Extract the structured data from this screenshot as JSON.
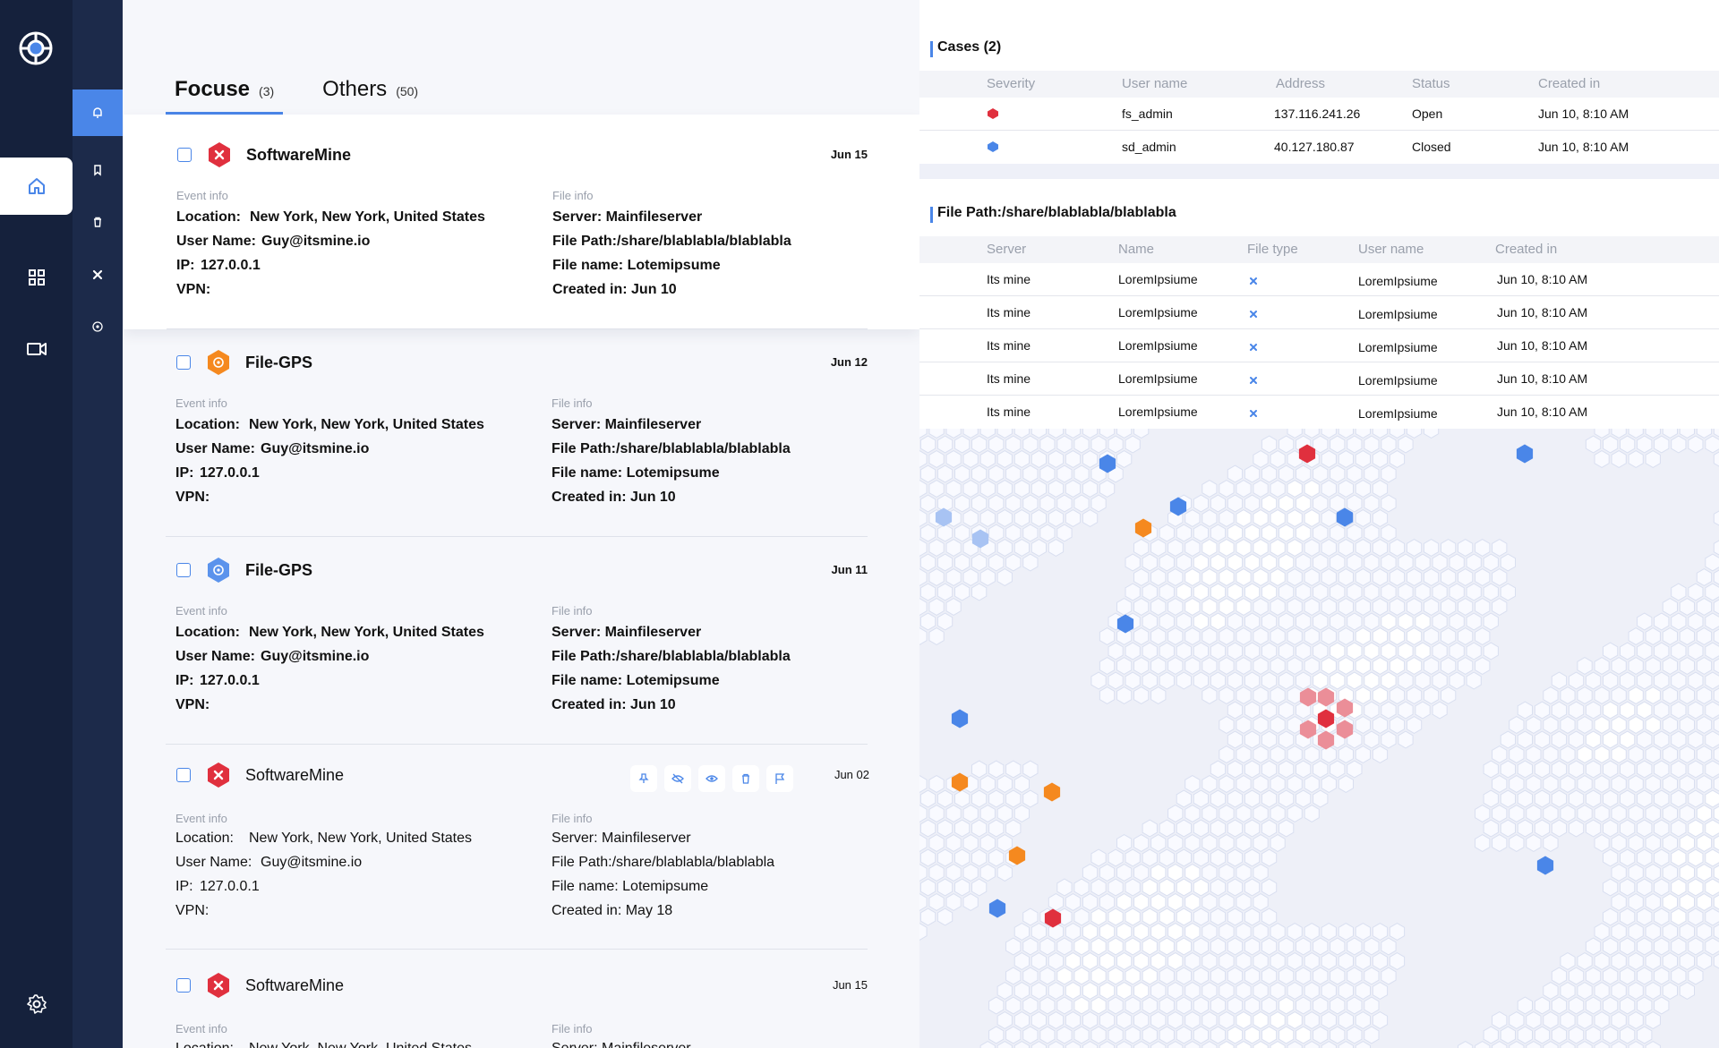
{
  "colors": {
    "accent": "#4a86e8",
    "danger": "#e0303e",
    "warning": "#f5891f",
    "rail_dark": "#15213c",
    "rail_mid": "#1c2a4a"
  },
  "nav": {
    "rail_icons": [
      "logo-icon",
      "home-icon",
      "grid-icon",
      "video-camera-icon",
      "gear-icon"
    ],
    "sub_icons": [
      "bell-icon",
      "bookmark-icon",
      "trash-icon",
      "x-badge-icon",
      "target-icon"
    ]
  },
  "tabs": [
    {
      "label": "Focuse",
      "count": "(3)"
    },
    {
      "label": "Others",
      "count": "(50)"
    }
  ],
  "events": [
    {
      "title": "SoftwareMine",
      "date": "Jun 15",
      "severity": "danger",
      "icon": "x-badge-icon",
      "event_info_label": "Event info",
      "file_info_label": "File info",
      "location_label": "Location:",
      "location": "New York, New York, United States",
      "user_label": "User Name:",
      "user": "Guy@itsmine.io",
      "ip_label": "IP:",
      "ip": "127.0.0.1",
      "vpn_label": "VPN:",
      "server": "Server: Mainfileserver",
      "file_path": "File Path:/share/blablabla/blablabla",
      "file_name": "File name: Lotemipsume",
      "created": "Created in: Jun 10"
    },
    {
      "title": "File-GPS",
      "date": "Jun 12",
      "severity": "warning",
      "icon": "target-icon",
      "event_info_label": "Event info",
      "file_info_label": "File info",
      "location_label": "Location:",
      "location": "New York, New York, United States",
      "user_label": "User Name:",
      "user": "Guy@itsmine.io",
      "ip_label": "IP:",
      "ip": "127.0.0.1",
      "vpn_label": "VPN:",
      "server": "Server: Mainfileserver",
      "file_path": "File Path:/share/blablabla/blablabla",
      "file_name": "File name: Lotemipsume",
      "created": "Created in: Jun 10"
    },
    {
      "title": "File-GPS",
      "date": "Jun 11",
      "severity": "info",
      "icon": "target-icon",
      "event_info_label": "Event info",
      "file_info_label": "File info",
      "location_label": "Location:",
      "location": "New York, New York, United States",
      "user_label": "User Name:",
      "user": "Guy@itsmine.io",
      "ip_label": "IP:",
      "ip": "127.0.0.1",
      "vpn_label": "VPN:",
      "server": "Server: Mainfileserver",
      "file_path": "File Path:/share/blablabla/blablabla",
      "file_name": "File name: Lotemipsume",
      "created": "Created in: Jun 10"
    },
    {
      "title": "SoftwareMine",
      "date": "Jun 02",
      "severity": "danger",
      "icon": "x-badge-icon",
      "event_info_label": "Event info",
      "file_info_label": "File info",
      "location_label": "Location:",
      "location": "New York, New York, United States",
      "user_label": "User Name:",
      "user": "Guy@itsmine.io",
      "ip_label": "IP:",
      "ip": "127.0.0.1",
      "vpn_label": "VPN:",
      "server": "Server: Mainfileserver",
      "file_path": "File Path:/share/blablabla/blablabla",
      "file_name": "File name: Lotemipsume",
      "created": "Created in: May 18",
      "actions": [
        "pin-icon",
        "eye-off-icon",
        "eye-icon",
        "trash-icon",
        "flag-icon"
      ]
    },
    {
      "title": "SoftwareMine",
      "date": "Jun 15",
      "severity": "danger",
      "icon": "x-badge-icon",
      "event_info_label": "Event info",
      "file_info_label": "File info",
      "location_label": "Location:",
      "location": "New York, New York, United States",
      "server": "Server: Mainfileserver"
    }
  ],
  "cases": {
    "title": "Cases (2)",
    "columns": [
      "Severity",
      "User name",
      "Address",
      "Status",
      "Created in"
    ],
    "rows": [
      {
        "severity": "danger",
        "user": "fs_admin",
        "address": "137.116.241.26",
        "status": "Open",
        "created": "Jun 10, 8:10 AM"
      },
      {
        "severity": "info",
        "user": "sd_admin",
        "address": "40.127.180.87",
        "status": "Closed",
        "created": "Jun 10, 8:10 AM"
      }
    ]
  },
  "files": {
    "title": "File Path:/share/blablabla/blablabla",
    "columns": [
      "Server",
      "Name",
      "File type",
      "User name",
      "Created in"
    ],
    "rows": [
      {
        "server": "Its mine",
        "name": "LoremIpsiume",
        "type_icon": "x-badge-icon",
        "user": "LoremIpsiume",
        "created": "Jun 10, 8:10 AM"
      },
      {
        "server": "Its mine",
        "name": "LoremIpsiume",
        "type_icon": "x-badge-icon",
        "user": "LoremIpsiume",
        "created": "Jun 10, 8:10 AM"
      },
      {
        "server": "Its mine",
        "name": "LoremIpsiume",
        "type_icon": "x-badge-icon",
        "user": "LoremIpsiume",
        "created": "Jun 10, 8:10 AM"
      },
      {
        "server": "Its mine",
        "name": "LoremIpsiume",
        "type_icon": "x-badge-icon",
        "user": "LoremIpsiume",
        "created": "Jun 10, 8:10 AM"
      },
      {
        "server": "Its mine",
        "name": "LoremIpsiume",
        "type_icon": "x-badge-icon",
        "user": "LoremIpsiume",
        "created": "Jun 10, 8:10 AM"
      }
    ]
  }
}
